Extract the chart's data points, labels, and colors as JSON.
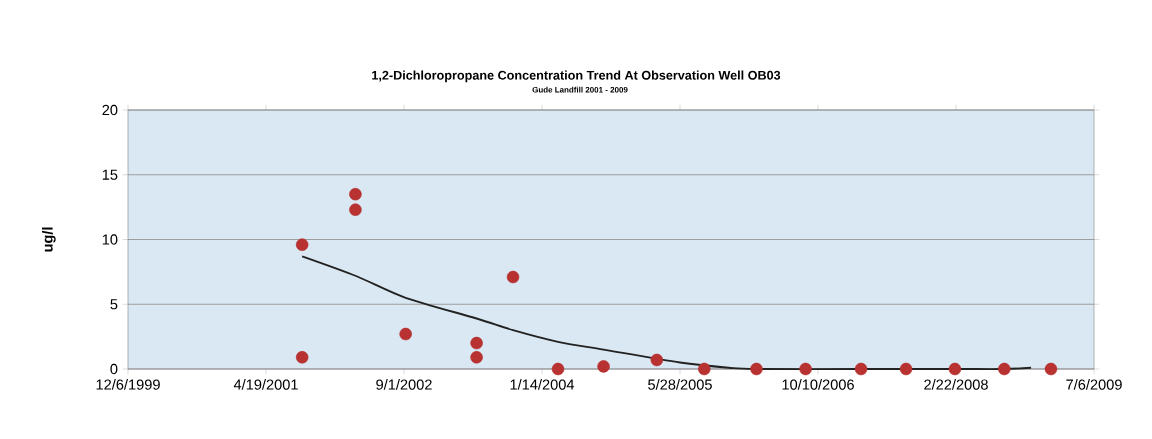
{
  "chart_data": {
    "type": "scatter",
    "title": "1,2-Dichloropropane Concentration Trend At Observation Well OB03",
    "subtitle": "Gude Landfill 2001 - 2009",
    "ylabel": "ug/l",
    "xlim": [
      "1999-12-06",
      "2009-07-06"
    ],
    "xticks": [
      {
        "value": "1999-12-06",
        "label": "12/6/1999"
      },
      {
        "value": "2001-04-19",
        "label": "4/19/2001"
      },
      {
        "value": "2002-09-01",
        "label": "9/1/2002"
      },
      {
        "value": "2004-01-14",
        "label": "1/14/2004"
      },
      {
        "value": "2005-05-28",
        "label": "5/28/2005"
      },
      {
        "value": "2006-10-10",
        "label": "10/10/2006"
      },
      {
        "value": "2008-02-22",
        "label": "2/22/2008"
      },
      {
        "value": "2009-07-06",
        "label": "7/6/2009"
      }
    ],
    "ylim": [
      0,
      20
    ],
    "yticks": [
      0,
      5,
      10,
      15,
      20
    ],
    "grid": "y",
    "marker": "circle",
    "series": [
      {
        "color": "#b83232",
        "x": [
          "2001-08-28",
          "2001-08-28",
          "2002-03-09",
          "2002-03-09",
          "2002-09-07",
          "2003-05-22",
          "2003-05-22",
          "2003-10-01",
          "2004-03-12",
          "2004-08-24",
          "2005-03-05",
          "2005-08-24",
          "2006-03-01",
          "2006-08-26",
          "2007-03-15",
          "2007-08-25",
          "2008-02-18",
          "2008-08-15",
          "2009-01-31"
        ],
        "values": [
          9.6,
          0.9,
          13.5,
          12.3,
          2.7,
          2.0,
          0.9,
          7.1,
          0,
          0.2,
          0.7,
          0,
          0,
          0,
          0,
          0,
          0,
          0,
          0
        ]
      },
      {
        "type": "line",
        "marker": "none",
        "color": "#222222",
        "x": [
          "2001-08-28",
          "2002-03-09",
          "2002-09-07",
          "2003-05-22",
          "2003-10-01",
          "2004-03-12",
          "2004-08-24",
          "2005-05-28",
          "2005-11-20",
          "2006-03-01",
          "2007-03-15",
          "2008-02-18",
          "2008-08-15",
          "2008-11-20"
        ],
        "values": [
          8.7,
          7.2,
          5.5,
          3.9,
          3.0,
          2.1,
          1.5,
          0.5,
          0.1,
          0,
          0,
          0,
          0,
          0.1
        ]
      }
    ]
  }
}
